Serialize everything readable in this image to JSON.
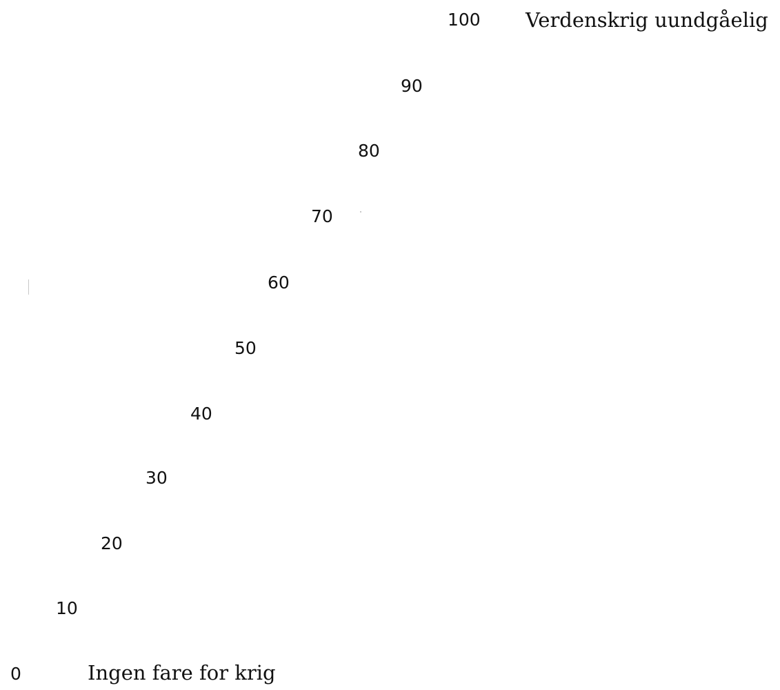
{
  "scale": {
    "levels": [
      {
        "value": "100",
        "label": "Verdenskrig uundgåelig"
      },
      {
        "value": "90"
      },
      {
        "value": "80"
      },
      {
        "value": "70"
      },
      {
        "value": "60"
      },
      {
        "value": "50"
      },
      {
        "value": "40"
      },
      {
        "value": "30"
      },
      {
        "value": "20"
      },
      {
        "value": "10"
      },
      {
        "value": "0",
        "label": "Ingen fare for krig"
      }
    ]
  }
}
